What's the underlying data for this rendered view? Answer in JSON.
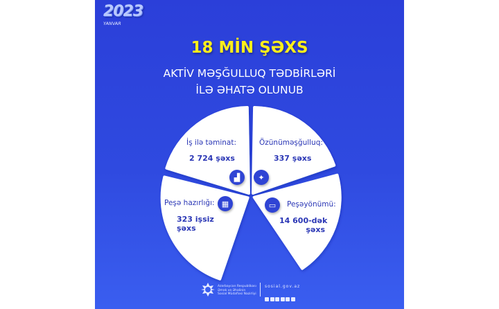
{
  "badge": {
    "year": "2023",
    "month": "YANVAR"
  },
  "headline": "18 MİN ŞƏXS",
  "subtitle": [
    "AKTİV MƏŞĞULLUQ TƏDBİRLƏRİ",
    "İLƏ ƏHATƏ OLUNUB"
  ],
  "segments": [
    {
      "label": "İş ilə təminat:",
      "value": "2 724 şəxs",
      "icon": "worker-at-desk-icon"
    },
    {
      "label": "Özünüməşğulluq:",
      "value": "337 şəxs",
      "icon": "self-employed-person-icon"
    },
    {
      "label": "Peşə hazırlığı:",
      "value": "323 işsiz şəxs",
      "value_lines": [
        "323 işsiz",
        "şəxs"
      ],
      "icon": "training-board-icon"
    },
    {
      "label": "Peşəyönümü:",
      "value": "14 600-dək şəxs",
      "value_lines": [
        "14 600-dək",
        "şəxs"
      ],
      "icon": "presentation-icon"
    }
  ],
  "footer": {
    "org_lines": [
      "Azərbaycan Respublikası",
      "Əmək və Əhalinin",
      "Sosial Müdafiəsi Nazirliyi"
    ],
    "website": "sosial.gov.az",
    "social_icons": [
      "facebook-icon",
      "instagram-icon",
      "youtube-icon",
      "telegram-icon",
      "tiktok-icon",
      "linkedin-icon"
    ]
  },
  "colors": {
    "background": "#2d45dc",
    "headline": "#ffef1a",
    "segment_text": "#2a36b5",
    "segment_fill": "#ffffff"
  }
}
